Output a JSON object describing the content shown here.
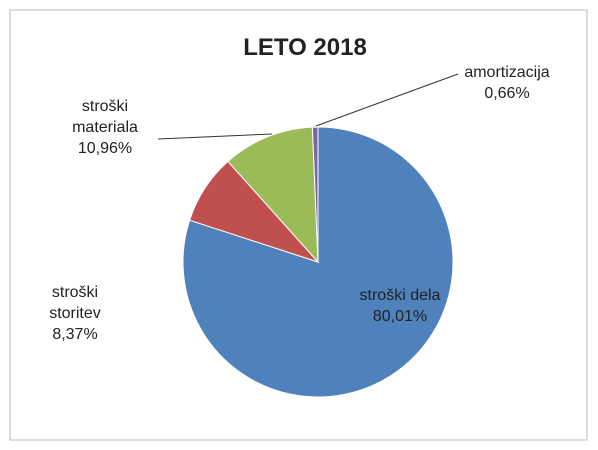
{
  "chart_data": {
    "type": "pie",
    "title": "LETO 2018",
    "categories": [
      "stroški dela",
      "stroški storitev",
      "stroški materiala",
      "amortizacija"
    ],
    "values": [
      80.01,
      8.37,
      10.96,
      0.66
    ],
    "value_labels": [
      "80,01%",
      "8,37%",
      "10,96%",
      "0,66%"
    ],
    "colors": [
      "#4f81bd",
      "#c0504d",
      "#9bbb59",
      "#8064a2"
    ]
  }
}
